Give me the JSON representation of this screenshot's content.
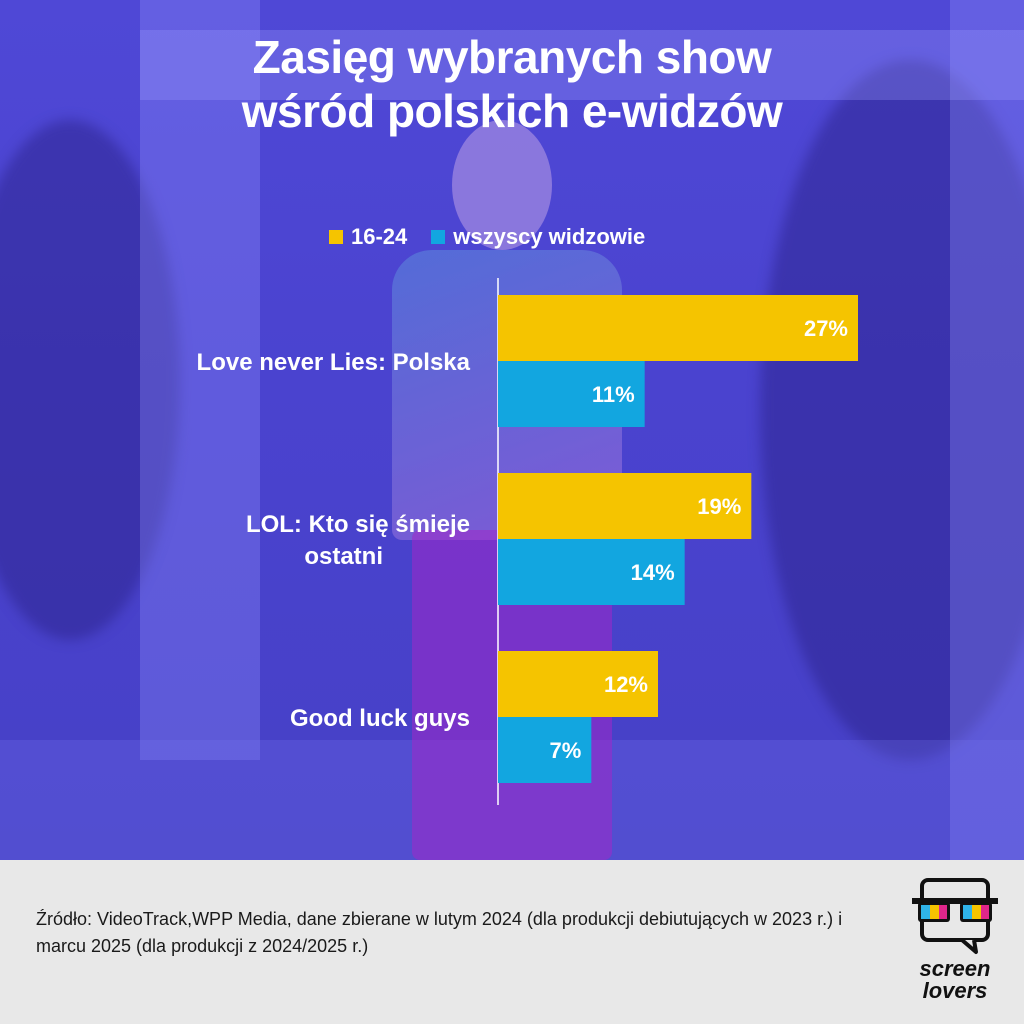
{
  "header": {
    "title_line1": "Zasięg wybranych show",
    "title_line2": "wśród polskich e-widzów"
  },
  "legend": {
    "items": [
      {
        "label": "16-24",
        "color": "#f5c400"
      },
      {
        "label": "wszyscy widzowie",
        "color": "#12a6e0"
      }
    ]
  },
  "chart_data": {
    "type": "bar",
    "orientation": "horizontal",
    "categories": [
      "Love never Lies: Polska",
      "LOL: Kto się śmieje ostatni",
      "Good luck guys"
    ],
    "category_lines": [
      [
        "Love never Lies: Polska"
      ],
      [
        "LOL: Kto się śmieje",
        "ostatni"
      ],
      [
        "Good luck guys"
      ]
    ],
    "series": [
      {
        "name": "16-24",
        "color": "#f5c400",
        "values": [
          27,
          19,
          12
        ]
      },
      {
        "name": "wszyscy widzowie",
        "color": "#12a6e0",
        "values": [
          11,
          14,
          7
        ]
      }
    ],
    "unit": "%",
    "xlim": [
      0,
      27
    ],
    "grid": false,
    "legend_position": "top"
  },
  "footer": {
    "source": "Źródło: VideoTrack,WPP Media, dane zbierane w lutym 2024 (dla produkcji debiutujących w 2023 r.) i marcu 2025 (dla produkcji z 2024/2025 r.)",
    "logo_line1": "screen",
    "logo_line2": "lovers"
  }
}
